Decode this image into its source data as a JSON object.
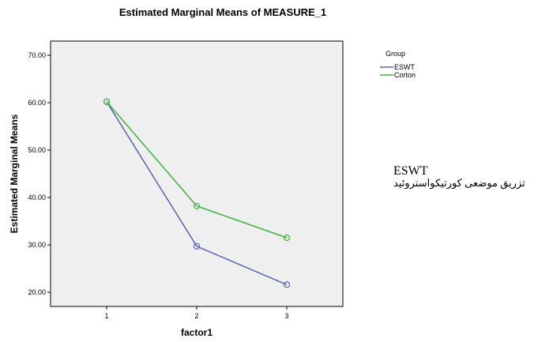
{
  "chart_data": {
    "type": "line",
    "title": "Estimated Marginal Means of MEASURE_1",
    "xlabel": "factor1",
    "ylabel": "Estimated Marginal Means",
    "categories": [
      "1",
      "2",
      "3"
    ],
    "ylim": [
      17,
      73
    ],
    "yticks": [
      20,
      30,
      40,
      50,
      60,
      70
    ],
    "ytick_labels": [
      "20.00",
      "30.00",
      "40.00",
      "50.00",
      "60.00",
      "70.00"
    ],
    "grid": false,
    "legend": {
      "title": "Group",
      "placement": "top-right"
    },
    "series": [
      {
        "name": "ESWT",
        "color": "#5a64b4",
        "values": [
          60.2,
          29.7,
          21.6
        ]
      },
      {
        "name": "Corton",
        "color": "#3cb43c",
        "values": [
          60.2,
          38.2,
          31.5
        ]
      }
    ]
  },
  "side_note": {
    "line1": "ESWT",
    "line2": "تزریق موضعی کورتیکواستروئید"
  },
  "colors": {
    "plot_background": "#efefef",
    "frame": "#000000"
  }
}
